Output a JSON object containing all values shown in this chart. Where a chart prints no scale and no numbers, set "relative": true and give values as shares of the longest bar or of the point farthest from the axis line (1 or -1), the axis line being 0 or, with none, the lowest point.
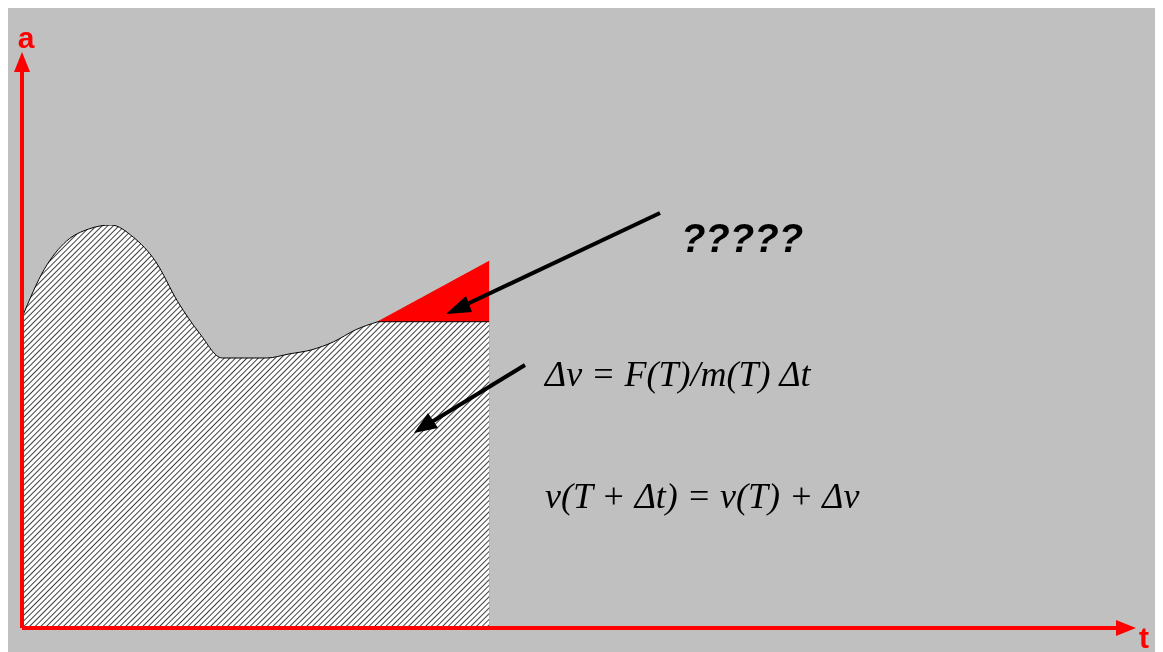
{
  "chart_data": {
    "type": "area",
    "relative": true,
    "xlabel": "t",
    "categories": [
      null,
      null,
      null,
      null,
      null,
      null,
      null,
      null,
      null,
      null,
      null,
      null,
      null,
      null,
      null,
      null,
      null,
      null,
      null,
      null,
      null,
      null,
      null,
      null,
      null,
      null,
      null,
      null,
      null,
      null,
      null,
      null,
      null,
      null,
      null,
      null,
      null,
      null,
      null,
      null,
      null,
      null,
      null,
      null,
      null,
      null,
      null,
      null,
      null,
      null
    ],
    "series": [
      {
        "color": "#ff0000",
        "values": [
          null,
          null,
          null,
          null,
          null,
          null,
          null,
          null,
          null,
          null,
          null,
          null,
          null,
          null,
          null,
          null,
          0.76,
          0.79,
          0.82,
          0.85,
          0.88,
          0.91,
          null,
          null,
          null,
          null,
          null,
          null,
          null,
          null,
          null,
          null,
          null,
          null,
          null,
          null,
          null,
          null,
          null,
          null,
          null,
          null,
          null,
          null,
          null,
          null,
          null,
          null,
          null,
          null
        ]
      },
      {
        "color": "#404040",
        "values": [
          null,
          null,
          null,
          null,
          null,
          null,
          null,
          null,
          null,
          null,
          null,
          null,
          null,
          null,
          null,
          null,
          0.76,
          0.76,
          0.76,
          0.76,
          0.76,
          0.76,
          null,
          null,
          null,
          null,
          null,
          null,
          null,
          null,
          null,
          null,
          null,
          null,
          null,
          null,
          null,
          null,
          null,
          null,
          null,
          null,
          null,
          null,
          null,
          null,
          null,
          null,
          null,
          null
        ]
      },
      {
        "color": "#404040",
        "values": [
          0.77,
          0.89,
          0.96,
          0.99,
          1.0,
          0.97,
          0.91,
          0.81,
          0.73,
          0.67,
          0.67,
          0.67,
          0.68,
          0.69,
          0.71,
          0.74,
          0.76,
          null,
          null,
          null,
          null,
          null,
          null,
          null,
          null,
          null,
          null,
          null,
          null,
          null,
          null,
          null,
          null,
          null,
          null,
          null,
          null,
          null,
          null,
          null,
          null,
          null,
          null,
          null,
          null,
          null,
          null,
          null,
          null,
          null
        ]
      }
    ],
    "annotations": [
      "a",
      "?????",
      "Δv = F(T)/m(T) Δt",
      "v(T + Δt) = v(T) + Δv"
    ]
  }
}
